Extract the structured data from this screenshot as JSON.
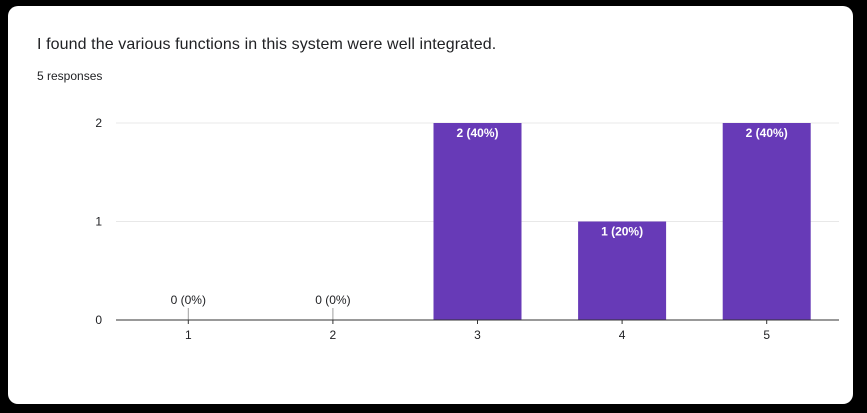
{
  "question": {
    "title": "I found the various functions in this system were well integrated.",
    "responses_label": "5 responses"
  },
  "colors": {
    "bar": "#673ab7",
    "bar_label_inside": "#ffffff",
    "bar_label_outside": "#202124",
    "gridline": "#e8e8e8",
    "axis": "#333333",
    "tick_label": "#202124"
  },
  "chart_data": {
    "type": "bar",
    "title": "",
    "xlabel": "",
    "ylabel": "",
    "categories": [
      "1",
      "2",
      "3",
      "4",
      "5"
    ],
    "values": [
      0,
      0,
      2,
      1,
      2
    ],
    "data_labels": [
      "0 (0%)",
      "0 (0%)",
      "2 (40%)",
      "1 (20%)",
      "2 (40%)"
    ],
    "yticks": [
      0,
      1,
      2
    ],
    "ylim": [
      0,
      2
    ],
    "grid": true,
    "legend": "none"
  }
}
